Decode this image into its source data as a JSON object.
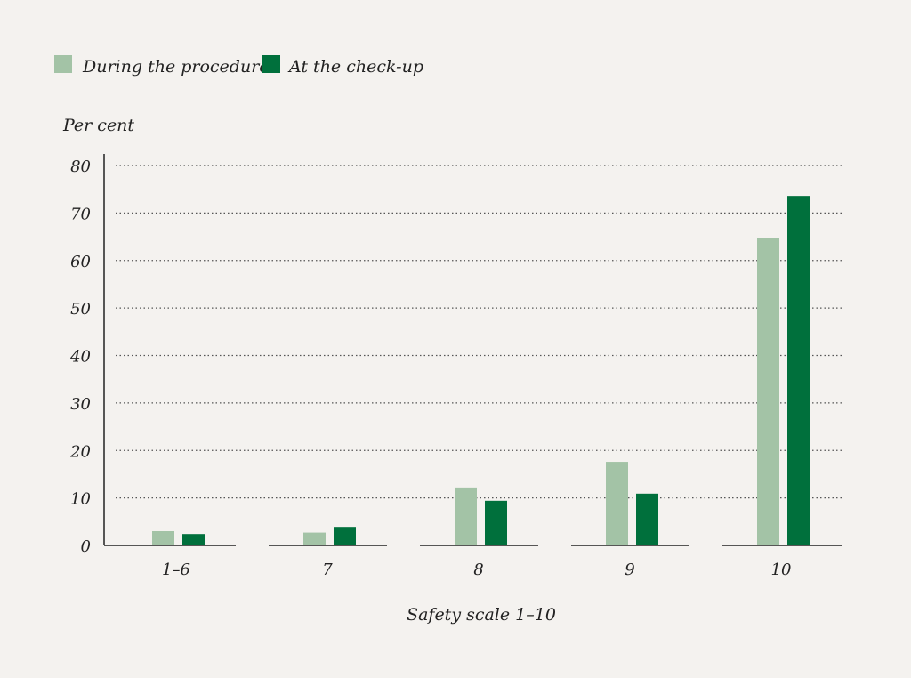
{
  "chart_data": {
    "type": "bar",
    "categories": [
      "1–6",
      "7",
      "8",
      "9",
      "10"
    ],
    "series": [
      {
        "name": "During the procedure",
        "color": "#a3c3a6",
        "values": [
          3.0,
          2.7,
          12.2,
          17.6,
          64.8
        ]
      },
      {
        "name": "At the check-up",
        "color": "#00703c",
        "values": [
          2.4,
          3.9,
          9.4,
          10.9,
          73.6
        ]
      }
    ],
    "ylabel": "Per cent",
    "xlabel": "Safety scale 1–10",
    "ylim": [
      0,
      80
    ],
    "yticks": [
      0,
      10,
      20,
      30,
      40,
      50,
      60,
      70,
      80
    ],
    "grid": "dotted horizontal",
    "legend": "top-left"
  }
}
